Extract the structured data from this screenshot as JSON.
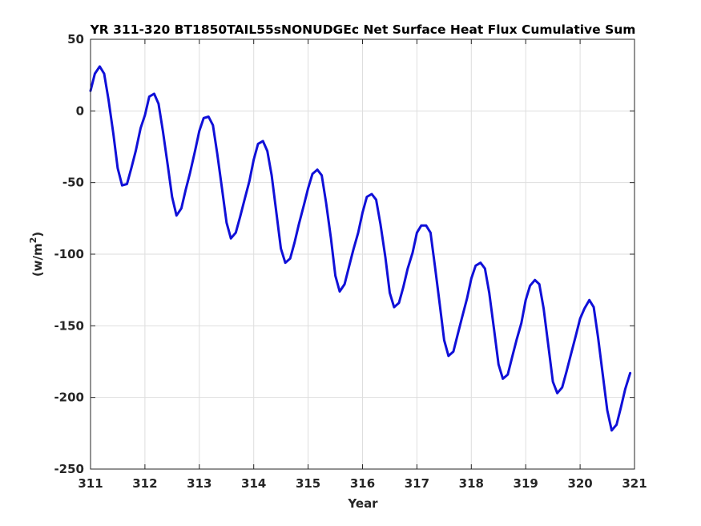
{
  "chart_data": {
    "type": "line",
    "title": "YR 311-320 BT1850TAIL55sNONUDGEc Net Surface Heat Flux  Cumulative Sum",
    "xlabel": "Year",
    "ylabel": "(w/m",
    "ylabel_sup": "2",
    "ylabel_close": ")",
    "xlim": [
      311,
      321
    ],
    "ylim": [
      -250,
      50
    ],
    "xticks": [
      "311",
      "312",
      "313",
      "314",
      "315",
      "316",
      "317",
      "318",
      "319",
      "320",
      "321"
    ],
    "yticks": [
      "50",
      "0",
      "-50",
      "-100",
      "-150",
      "-200",
      "-250"
    ],
    "grid": true,
    "line_color": "#1010d8",
    "series": [
      {
        "x": [
          311.0,
          311.08,
          311.17,
          311.25,
          311.33,
          311.42,
          311.5,
          311.58,
          311.67,
          311.75,
          311.83,
          311.92,
          312.0,
          312.08,
          312.17,
          312.25,
          312.33,
          312.42,
          312.5,
          312.58,
          312.67,
          312.75,
          312.83,
          312.92,
          313.0,
          313.08,
          313.17,
          313.25,
          313.33,
          313.42,
          313.5,
          313.58,
          313.67,
          313.75,
          313.83,
          313.92,
          314.0,
          314.08,
          314.17,
          314.25,
          314.33,
          314.42,
          314.5,
          314.58,
          314.67,
          314.75,
          314.83,
          314.92,
          315.0,
          315.08,
          315.17,
          315.25,
          315.33,
          315.42,
          315.5,
          315.58,
          315.67,
          315.75,
          315.83,
          315.92,
          316.0,
          316.08,
          316.17,
          316.25,
          316.33,
          316.42,
          316.5,
          316.58,
          316.67,
          316.75,
          316.83,
          316.92,
          317.0,
          317.08,
          317.17,
          317.25,
          317.33,
          317.42,
          317.5,
          317.58,
          317.67,
          317.75,
          317.83,
          317.92,
          318.0,
          318.08,
          318.17,
          318.25,
          318.33,
          318.42,
          318.5,
          318.58,
          318.67,
          318.75,
          318.83,
          318.92,
          319.0,
          319.08,
          319.17,
          319.25,
          319.33,
          319.42,
          319.5,
          319.58,
          319.67,
          319.75,
          319.83,
          319.92,
          320.0,
          320.08,
          320.17,
          320.25,
          320.33,
          320.42,
          320.5,
          320.58,
          320.67,
          320.75,
          320.83,
          320.92
        ],
        "y": [
          14,
          26,
          31,
          26,
          8,
          -16,
          -40,
          -52,
          -51,
          -40,
          -28,
          -12,
          -3,
          10,
          12,
          5,
          -14,
          -38,
          -60,
          -73,
          -68,
          -55,
          -43,
          -28,
          -14,
          -5,
          -4,
          -10,
          -30,
          -55,
          -78,
          -89,
          -85,
          -74,
          -62,
          -49,
          -34,
          -23,
          -21,
          -28,
          -45,
          -72,
          -96,
          -106,
          -103,
          -92,
          -79,
          -66,
          -54,
          -44,
          -41,
          -45,
          -64,
          -89,
          -115,
          -126,
          -121,
          -109,
          -97,
          -85,
          -71,
          -60,
          -58,
          -62,
          -79,
          -102,
          -127,
          -137,
          -134,
          -123,
          -110,
          -99,
          -85,
          -80,
          -80,
          -85,
          -108,
          -135,
          -160,
          -171,
          -168,
          -156,
          -144,
          -131,
          -117,
          -108,
          -106,
          -110,
          -127,
          -153,
          -177,
          -187,
          -184,
          -172,
          -160,
          -148,
          -132,
          -122,
          -118,
          -121,
          -138,
          -165,
          -189,
          -197,
          -193,
          -182,
          -170,
          -157,
          -145,
          -138,
          -132,
          -137,
          -158,
          -185,
          -209,
          -223,
          -219,
          -207,
          -194,
          -183
        ]
      }
    ]
  }
}
